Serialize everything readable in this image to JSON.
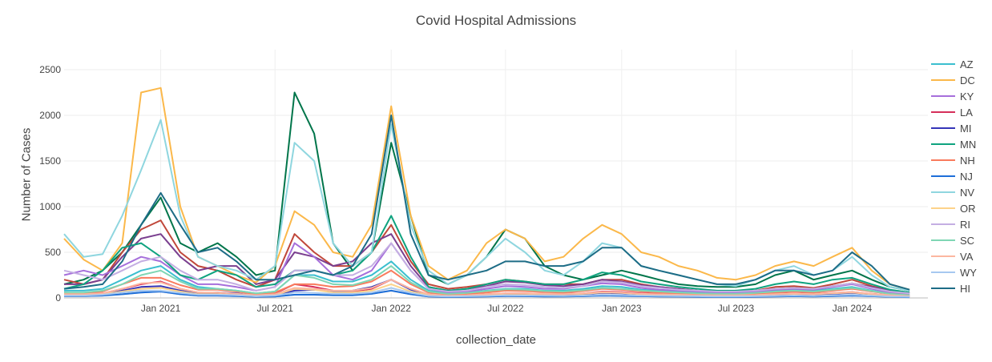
{
  "chart_data": {
    "type": "line",
    "title": "Covid Hospital Admissions",
    "xlabel": "collection_date",
    "ylabel": "Number of Cases",
    "ylim": [
      0,
      2700
    ],
    "xlim": [
      "2020-08-01",
      "2024-04-30"
    ],
    "y_ticks": [
      0,
      500,
      1000,
      1500,
      2000,
      2500
    ],
    "x_ticks": [
      {
        "date": "2021-01-01",
        "label": "Jan 2021"
      },
      {
        "date": "2021-07-01",
        "label": "Jul 2021"
      },
      {
        "date": "2022-01-01",
        "label": "Jan 2022"
      },
      {
        "date": "2022-07-01",
        "label": "Jul 2022"
      },
      {
        "date": "2023-01-01",
        "label": "Jan 2023"
      },
      {
        "date": "2023-07-01",
        "label": "Jul 2023"
      },
      {
        "date": "2024-01-01",
        "label": "Jan 2024"
      }
    ],
    "grid": true,
    "legend_position": "right",
    "x": [
      "2020-08-01",
      "2020-09-01",
      "2020-10-01",
      "2020-11-01",
      "2020-12-01",
      "2021-01-01",
      "2021-02-01",
      "2021-03-01",
      "2021-04-01",
      "2021-05-01",
      "2021-06-01",
      "2021-07-01",
      "2021-08-01",
      "2021-09-01",
      "2021-10-01",
      "2021-11-01",
      "2021-12-01",
      "2022-01-01",
      "2022-02-01",
      "2022-03-01",
      "2022-04-01",
      "2022-05-01",
      "2022-06-01",
      "2022-07-01",
      "2022-08-01",
      "2022-09-01",
      "2022-10-01",
      "2022-11-01",
      "2022-12-01",
      "2023-01-01",
      "2023-02-01",
      "2023-03-01",
      "2023-04-01",
      "2023-05-01",
      "2023-06-01",
      "2023-07-01",
      "2023-08-01",
      "2023-09-01",
      "2023-10-01",
      "2023-11-01",
      "2023-12-01",
      "2024-01-01",
      "2024-02-01",
      "2024-03-01",
      "2024-04-01"
    ],
    "series": [
      {
        "color": "#b8bcc6",
        "values": [
          20,
          20,
          25,
          40,
          60,
          70,
          40,
          25,
          25,
          20,
          12,
          15,
          35,
          35,
          30,
          30,
          45,
          80,
          40,
          15,
          10,
          12,
          15,
          20,
          18,
          16,
          16,
          18,
          25,
          22,
          18,
          15,
          14,
          12,
          10,
          10,
          12,
          15,
          18,
          16,
          20,
          25,
          18,
          12,
          8
        ]
      },
      {
        "color": "#00754a",
        "values": [
          150,
          200,
          300,
          500,
          800,
          1100,
          600,
          500,
          600,
          450,
          250,
          300,
          2250,
          1800,
          600,
          300,
          500,
          1700,
          900,
          250,
          150,
          250,
          450,
          750,
          650,
          350,
          250,
          200,
          250,
          300,
          250,
          200,
          150,
          130,
          120,
          120,
          150,
          250,
          300,
          200,
          250,
          300,
          200,
          120,
          80
        ]
      },
      {
        "color": "#c0473a",
        "values": [
          200,
          150,
          200,
          500,
          750,
          850,
          500,
          350,
          300,
          200,
          120,
          200,
          700,
          500,
          350,
          350,
          500,
          800,
          400,
          150,
          100,
          120,
          150,
          200,
          180,
          150,
          150,
          150,
          200,
          200,
          150,
          120,
          100,
          80,
          70,
          70,
          80,
          120,
          130,
          110,
          150,
          200,
          130,
          80,
          60
        ]
      },
      {
        "color": "#7a3f8f",
        "values": [
          150,
          150,
          200,
          450,
          650,
          700,
          450,
          300,
          350,
          350,
          150,
          200,
          500,
          450,
          350,
          400,
          600,
          700,
          350,
          120,
          80,
          100,
          130,
          180,
          170,
          140,
          130,
          150,
          200,
          180,
          140,
          120,
          100,
          80,
          70,
          70,
          80,
          100,
          110,
          100,
          130,
          160,
          120,
          80,
          50
        ]
      },
      {
        "name": "AZ",
        "color": "#3bbfcf",
        "values": [
          80,
          80,
          100,
          200,
          300,
          350,
          200,
          120,
          100,
          80,
          50,
          70,
          250,
          250,
          180,
          180,
          250,
          400,
          200,
          80,
          50,
          60,
          80,
          100,
          100,
          80,
          80,
          100,
          130,
          120,
          90,
          80,
          70,
          60,
          50,
          50,
          60,
          80,
          90,
          80,
          100,
          120,
          80,
          50,
          35
        ]
      },
      {
        "name": "DC",
        "color": "#fbb84a",
        "values": [
          650,
          420,
          300,
          600,
          2250,
          2300,
          1000,
          450,
          350,
          250,
          170,
          350,
          950,
          800,
          500,
          450,
          800,
          2100,
          900,
          350,
          200,
          300,
          600,
          750,
          650,
          400,
          450,
          650,
          800,
          700,
          500,
          450,
          350,
          300,
          220,
          200,
          250,
          350,
          400,
          350,
          450,
          550,
          300,
          150,
          90
        ]
      },
      {
        "name": "KY",
        "color": "#a66fdb",
        "values": [
          250,
          300,
          250,
          350,
          450,
          400,
          250,
          150,
          150,
          120,
          80,
          120,
          600,
          450,
          250,
          200,
          300,
          600,
          300,
          100,
          60,
          70,
          100,
          130,
          120,
          100,
          100,
          130,
          160,
          150,
          110,
          90,
          80,
          70,
          60,
          60,
          70,
          90,
          100,
          90,
          120,
          150,
          100,
          60,
          40
        ]
      },
      {
        "name": "LA",
        "color": "#d62f5a",
        "values": [
          60,
          50,
          50,
          100,
          150,
          180,
          100,
          60,
          50,
          40,
          30,
          50,
          150,
          120,
          80,
          70,
          100,
          200,
          100,
          40,
          30,
          30,
          40,
          50,
          50,
          45,
          45,
          50,
          70,
          65,
          50,
          45,
          40,
          35,
          30,
          30,
          35,
          45,
          50,
          45,
          55,
          65,
          45,
          30,
          20
        ]
      },
      {
        "name": "MI",
        "color": "#3535b8",
        "values": [
          30,
          30,
          40,
          80,
          120,
          130,
          80,
          50,
          60,
          50,
          25,
          30,
          80,
          90,
          70,
          80,
          120,
          200,
          90,
          30,
          20,
          25,
          30,
          40,
          40,
          35,
          35,
          40,
          55,
          50,
          40,
          35,
          30,
          25,
          22,
          22,
          25,
          35,
          40,
          35,
          45,
          55,
          40,
          25,
          18
        ]
      },
      {
        "name": "MN",
        "color": "#0fa37f",
        "values": [
          100,
          150,
          300,
          550,
          600,
          450,
          250,
          200,
          300,
          250,
          120,
          150,
          300,
          300,
          250,
          300,
          500,
          900,
          450,
          120,
          80,
          100,
          150,
          200,
          180,
          150,
          150,
          200,
          280,
          250,
          180,
          150,
          120,
          100,
          80,
          80,
          100,
          150,
          180,
          150,
          200,
          220,
          150,
          90,
          60
        ]
      },
      {
        "name": "NH",
        "color": "#f97b5d",
        "values": [
          50,
          50,
          70,
          150,
          220,
          220,
          140,
          90,
          90,
          70,
          40,
          60,
          150,
          150,
          120,
          130,
          180,
          300,
          150,
          60,
          40,
          45,
          60,
          80,
          75,
          65,
          60,
          75,
          100,
          90,
          70,
          60,
          50,
          45,
          40,
          40,
          45,
          60,
          70,
          60,
          80,
          100,
          70,
          45,
          30
        ]
      },
      {
        "name": "NJ",
        "color": "#1e6fd9",
        "values": [
          20,
          20,
          25,
          40,
          60,
          70,
          40,
          25,
          25,
          20,
          12,
          15,
          35,
          35,
          30,
          30,
          45,
          80,
          40,
          15,
          10,
          12,
          15,
          20,
          18,
          16,
          16,
          18,
          25,
          22,
          18,
          15,
          14,
          12,
          10,
          10,
          12,
          15,
          18,
          16,
          20,
          25,
          18,
          12,
          8
        ]
      },
      {
        "name": "NV",
        "color": "#8fd6df",
        "values": [
          700,
          450,
          480,
          900,
          1400,
          1950,
          900,
          450,
          350,
          300,
          200,
          350,
          1700,
          1500,
          600,
          350,
          500,
          1900,
          800,
          300,
          150,
          250,
          450,
          650,
          500,
          300,
          250,
          400,
          600,
          550,
          350,
          300,
          250,
          200,
          150,
          130,
          200,
          300,
          350,
          250,
          300,
          450,
          250,
          120,
          80
        ]
      },
      {
        "name": "OR",
        "color": "#fdd38a",
        "values": [
          40,
          35,
          40,
          70,
          100,
          110,
          70,
          40,
          40,
          30,
          20,
          30,
          100,
          90,
          60,
          60,
          80,
          150,
          70,
          30,
          20,
          25,
          35,
          45,
          45,
          40,
          40,
          45,
          60,
          55,
          40,
          35,
          30,
          28,
          25,
          25,
          30,
          40,
          45,
          40,
          50,
          60,
          40,
          28,
          20
        ]
      },
      {
        "name": "RI",
        "color": "#c4aee2",
        "values": [
          300,
          250,
          200,
          300,
          400,
          450,
          300,
          200,
          200,
          150,
          80,
          120,
          300,
          300,
          250,
          250,
          350,
          600,
          300,
          100,
          70,
          80,
          120,
          150,
          140,
          120,
          110,
          130,
          180,
          170,
          130,
          110,
          90,
          80,
          70,
          70,
          80,
          100,
          110,
          100,
          130,
          160,
          110,
          70,
          50
        ]
      },
      {
        "name": "SC",
        "color": "#7fd6b4",
        "values": [
          60,
          60,
          80,
          150,
          250,
          300,
          180,
          100,
          100,
          80,
          50,
          70,
          250,
          220,
          150,
          140,
          200,
          350,
          170,
          70,
          45,
          55,
          75,
          95,
          90,
          75,
          70,
          85,
          110,
          100,
          80,
          70,
          60,
          50,
          45,
          45,
          55,
          70,
          80,
          70,
          90,
          110,
          75,
          45,
          30
        ]
      },
      {
        "name": "VA",
        "color": "#fcb7a0",
        "values": [
          40,
          40,
          50,
          100,
          160,
          170,
          100,
          60,
          60,
          45,
          30,
          40,
          110,
          100,
          80,
          80,
          110,
          200,
          100,
          40,
          25,
          30,
          40,
          50,
          50,
          45,
          42,
          50,
          65,
          60,
          45,
          40,
          35,
          30,
          28,
          28,
          32,
          42,
          48,
          42,
          55,
          65,
          45,
          30,
          20
        ]
      },
      {
        "name": "WY",
        "color": "#a6c8f0",
        "values": [
          25,
          25,
          35,
          60,
          80,
          80,
          55,
          35,
          35,
          30,
          18,
          25,
          60,
          55,
          45,
          45,
          60,
          110,
          55,
          22,
          15,
          18,
          22,
          28,
          26,
          24,
          22,
          26,
          35,
          32,
          25,
          22,
          20,
          18,
          15,
          15,
          18,
          22,
          26,
          22,
          28,
          35,
          24,
          16,
          12
        ]
      },
      {
        "name": "HI",
        "color": "#1d6c86",
        "values": [
          100,
          120,
          150,
          400,
          800,
          1150,
          800,
          500,
          550,
          400,
          200,
          200,
          250,
          300,
          250,
          350,
          700,
          2000,
          700,
          250,
          200,
          250,
          300,
          400,
          400,
          350,
          350,
          400,
          550,
          550,
          350,
          300,
          250,
          200,
          150,
          150,
          200,
          300,
          300,
          250,
          300,
          500,
          350,
          150,
          90
        ]
      }
    ]
  }
}
